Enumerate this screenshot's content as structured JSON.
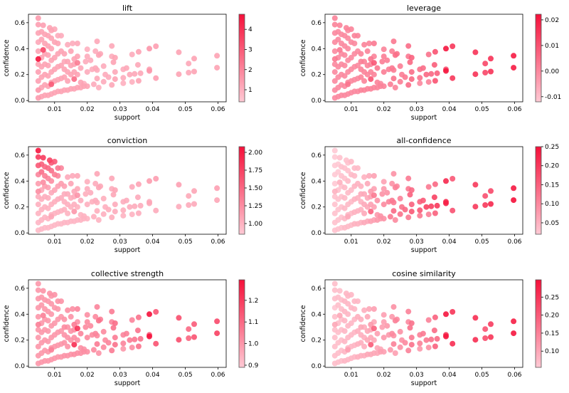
{
  "figure": {
    "colormap": {
      "low": "#ffc9d4",
      "high": "#f5103a"
    },
    "marker_opacity": 0.9
  },
  "points_fields": [
    "support",
    "confidence",
    "lift",
    "leverage",
    "conviction",
    "all-confidence",
    "collective strength",
    "cosine similarity"
  ],
  "points": [
    [
      0.0597,
      0.345,
      1.3,
      0.02,
      1.12,
      0.24,
      1.17,
      0.28
    ],
    [
      0.0597,
      0.253,
      1.3,
      0.02,
      1.08,
      0.25,
      1.19,
      0.29
    ],
    [
      0.0527,
      0.323,
      1.3,
      0.016,
      1.09,
      0.18,
      1.13,
      0.24
    ],
    [
      0.0527,
      0.223,
      1.3,
      0.016,
      1.06,
      0.22,
      1.15,
      0.25
    ],
    [
      0.051,
      0.285,
      1.2,
      0.012,
      1.07,
      0.17,
      1.1,
      0.21
    ],
    [
      0.051,
      0.215,
      1.2,
      0.012,
      1.05,
      0.2,
      1.11,
      0.22
    ],
    [
      0.048,
      0.372,
      1.3,
      0.016,
      1.12,
      0.2,
      1.16,
      0.26
    ],
    [
      0.048,
      0.203,
      1.3,
      0.016,
      1.05,
      0.2,
      1.16,
      0.26
    ],
    [
      0.041,
      0.418,
      1.4,
      0.015,
      1.14,
      0.16,
      1.14,
      0.25
    ],
    [
      0.041,
      0.173,
      1.4,
      0.015,
      1.05,
      0.17,
      1.15,
      0.26
    ],
    [
      0.039,
      0.4,
      1.6,
      0.021,
      1.15,
      0.22,
      1.29,
      0.29
    ],
    [
      0.039,
      0.24,
      1.3,
      0.01,
      1.06,
      0.22,
      1.14,
      0.25
    ],
    [
      0.039,
      0.228,
      1.6,
      0.021,
      1.08,
      0.23,
      1.29,
      0.29
    ],
    [
      0.0357,
      0.375,
      1.3,
      0.01,
      1.1,
      0.14,
      1.08,
      0.19
    ],
    [
      0.0355,
      0.275,
      1.2,
      0.008,
      1.06,
      0.19,
      1.08,
      0.18
    ],
    [
      0.0357,
      0.152,
      1.3,
      0.01,
      1.04,
      0.15,
      1.08,
      0.19
    ],
    [
      0.0337,
      0.355,
      1.1,
      0.004,
      1.06,
      0.12,
      1.04,
      0.15
    ],
    [
      0.0337,
      0.143,
      1.0,
      0.001,
      1.0,
      0.11,
      1.02,
      0.13
    ],
    [
      0.0363,
      0.21,
      1.2,
      0.007,
      1.05,
      0.2,
      1.08,
      0.18
    ],
    [
      0.0345,
      0.205,
      1.2,
      0.006,
      1.05,
      0.19,
      1.07,
      0.17
    ],
    [
      0.033,
      0.2,
      1.2,
      0.006,
      1.04,
      0.19,
      1.06,
      0.16
    ],
    [
      0.032,
      0.25,
      1.2,
      0.005,
      1.05,
      0.16,
      1.05,
      0.16
    ],
    [
      0.031,
      0.24,
      1.1,
      0.004,
      1.04,
      0.15,
      1.04,
      0.15
    ],
    [
      0.031,
      0.175,
      1.1,
      0.004,
      1.03,
      0.16,
      1.04,
      0.15
    ],
    [
      0.031,
      0.133,
      1.0,
      0.0,
      1.0,
      0.12,
      1.0,
      0.12
    ],
    [
      0.0285,
      0.33,
      1.3,
      0.007,
      1.09,
      0.14,
      1.09,
      0.17
    ],
    [
      0.0275,
      0.42,
      1.2,
      0.005,
      1.08,
      0.12,
      1.06,
      0.15
    ],
    [
      0.0275,
      0.34,
      1.1,
      0.003,
      1.05,
      0.12,
      1.04,
      0.14
    ],
    [
      0.028,
      0.295,
      1.3,
      0.006,
      1.08,
      0.15,
      1.08,
      0.17
    ],
    [
      0.0285,
      0.22,
      1.2,
      0.005,
      1.05,
      0.15,
      1.06,
      0.16
    ],
    [
      0.0285,
      0.165,
      1.3,
      0.006,
      1.04,
      0.16,
      1.08,
      0.17
    ],
    [
      0.0275,
      0.12,
      1.2,
      0.005,
      1.03,
      0.12,
      1.06,
      0.15
    ],
    [
      0.0265,
      0.18,
      1.1,
      0.003,
      1.03,
      0.14,
      1.04,
      0.14
    ],
    [
      0.0255,
      0.2,
      1.1,
      0.002,
      1.02,
      0.13,
      1.03,
      0.13
    ],
    [
      0.025,
      0.145,
      1.1,
      0.002,
      1.02,
      0.13,
      1.03,
      0.13
    ],
    [
      0.023,
      0.456,
      1.2,
      0.003,
      1.09,
      0.09,
      1.04,
      0.13
    ],
    [
      0.0225,
      0.38,
      1.1,
      0.002,
      1.05,
      0.09,
      1.03,
      0.12
    ],
    [
      0.0235,
      0.35,
      1.3,
      0.005,
      1.09,
      0.11,
      1.08,
      0.15
    ],
    [
      0.024,
      0.36,
      1.2,
      0.004,
      1.07,
      0.1,
      1.05,
      0.14
    ],
    [
      0.025,
      0.265,
      1.1,
      0.002,
      1.03,
      0.11,
      1.03,
      0.13
    ],
    [
      0.0225,
      0.25,
      1.2,
      0.003,
      1.04,
      0.12,
      1.04,
      0.14
    ],
    [
      0.023,
      0.235,
      1.1,
      0.002,
      1.03,
      0.12,
      1.03,
      0.13
    ],
    [
      0.0215,
      0.24,
      1.1,
      0.002,
      1.03,
      0.11,
      1.03,
      0.12
    ],
    [
      0.023,
      0.17,
      1.2,
      0.004,
      1.03,
      0.14,
      1.06,
      0.15
    ],
    [
      0.022,
      0.125,
      1.1,
      0.002,
      1.02,
      0.12,
      1.03,
      0.12
    ],
    [
      0.0235,
      0.1,
      1.0,
      0.001,
      1.0,
      0.1,
      1.01,
      0.11
    ],
    [
      0.02,
      0.395,
      1.0,
      0.001,
      1.03,
      0.07,
      1.02,
      0.11
    ],
    [
      0.02,
      0.34,
      1.1,
      0.002,
      1.04,
      0.08,
      1.03,
      0.11
    ],
    [
      0.02,
      0.22,
      1.1,
      0.002,
      1.02,
      0.1,
      1.03,
      0.12
    ],
    [
      0.021,
      0.31,
      1.1,
      0.002,
      1.04,
      0.09,
      1.03,
      0.12
    ],
    [
      0.0195,
      0.3,
      1.1,
      0.002,
      1.03,
      0.09,
      1.03,
      0.11
    ],
    [
      0.019,
      0.13,
      1.0,
      0.0,
      1.0,
      0.09,
      1.01,
      0.1
    ],
    [
      0.017,
      0.44,
      1.2,
      0.003,
      1.08,
      0.07,
      1.04,
      0.11
    ],
    [
      0.017,
      0.29,
      2.2,
      0.009,
      1.2,
      0.12,
      1.22,
      0.19
    ],
    [
      0.016,
      0.165,
      2.6,
      0.01,
      1.18,
      0.15,
      1.23,
      0.2
    ],
    [
      0.0155,
      0.44,
      1.1,
      0.001,
      1.06,
      0.06,
      1.02,
      0.1
    ],
    [
      0.016,
      0.32,
      1.3,
      0.004,
      1.08,
      0.08,
      1.06,
      0.12
    ],
    [
      0.018,
      0.25,
      1.2,
      0.003,
      1.04,
      0.09,
      1.04,
      0.11
    ],
    [
      0.014,
      0.43,
      1.1,
      0.001,
      1.06,
      0.05,
      1.02,
      0.09
    ],
    [
      0.013,
      0.3,
      1.2,
      0.002,
      1.04,
      0.06,
      1.03,
      0.1
    ],
    [
      0.012,
      0.5,
      1.1,
      0.001,
      1.3,
      0.04,
      1.01,
      0.08
    ],
    [
      0.011,
      0.5,
      1.1,
      0.001,
      1.4,
      0.04,
      1.01,
      0.08
    ],
    [
      0.01,
      0.55,
      1.2,
      0.001,
      1.6,
      0.04,
      1.01,
      0.08
    ],
    [
      0.0085,
      0.56,
      1.3,
      0.001,
      1.75,
      0.03,
      1.01,
      0.08
    ],
    [
      0.0065,
      0.58,
      1.4,
      0.001,
      1.8,
      0.03,
      1.01,
      0.07
    ],
    [
      0.005,
      0.635,
      1.5,
      0.001,
      2.05,
      0.02,
      1.0,
      0.07
    ],
    [
      0.005,
      0.585,
      1.4,
      0.001,
      1.8,
      0.02,
      1.0,
      0.07
    ],
    [
      0.005,
      0.52,
      1.3,
      0.0,
      1.6,
      0.02,
      1.0,
      0.07
    ],
    [
      0.005,
      0.45,
      1.2,
      0.0,
      1.3,
      0.02,
      1.0,
      0.06
    ],
    [
      0.005,
      0.32,
      4.7,
      0.003,
      1.25,
      0.05,
      1.05,
      0.1
    ],
    [
      0.0065,
      0.39,
      3.5,
      0.003,
      1.25,
      0.05,
      1.05,
      0.1
    ],
    [
      0.009,
      0.125,
      3.0,
      0.004,
      1.08,
      0.06,
      1.05,
      0.11
    ],
    [
      0.005,
      0.02,
      1.5,
      0.0,
      0.95,
      0.03,
      1.0,
      0.07
    ],
    [
      0.005,
      0.08,
      1.6,
      0.0,
      0.98,
      0.03,
      1.0,
      0.07
    ],
    [
      0.005,
      0.15,
      1.4,
      0.0,
      1.0,
      0.03,
      1.0,
      0.07
    ],
    [
      0.005,
      0.22,
      1.4,
      0.0,
      1.02,
      0.03,
      1.0,
      0.07
    ],
    [
      0.005,
      0.28,
      1.3,
      0.0,
      1.04,
      0.03,
      1.0,
      0.07
    ],
    [
      0.005,
      0.38,
      1.3,
      0.0,
      1.15,
      0.02,
      1.0,
      0.07
    ],
    [
      0.006,
      0.03,
      1.3,
      0.0,
      0.96,
      0.03,
      1.0,
      0.07
    ],
    [
      0.006,
      0.1,
      1.3,
      0.0,
      0.99,
      0.03,
      1.0,
      0.07
    ],
    [
      0.006,
      0.18,
      1.3,
      0.0,
      1.01,
      0.03,
      1.0,
      0.07
    ],
    [
      0.006,
      0.26,
      1.3,
      0.0,
      1.03,
      0.03,
      1.0,
      0.07
    ],
    [
      0.006,
      0.33,
      1.3,
      0.0,
      1.08,
      0.03,
      1.0,
      0.07
    ],
    [
      0.006,
      0.47,
      1.3,
      0.0,
      1.45,
      0.02,
      1.0,
      0.07
    ],
    [
      0.006,
      0.53,
      1.3,
      0.0,
      1.55,
      0.02,
      1.0,
      0.07
    ],
    [
      0.007,
      0.04,
      1.3,
      0.0,
      0.96,
      0.03,
      1.0,
      0.07
    ],
    [
      0.007,
      0.12,
      1.3,
      0.0,
      0.99,
      0.03,
      1.0,
      0.07
    ],
    [
      0.007,
      0.2,
      1.3,
      0.0,
      1.01,
      0.03,
      1.0,
      0.07
    ],
    [
      0.007,
      0.28,
      1.3,
      0.0,
      1.04,
      0.03,
      1.0,
      0.07
    ],
    [
      0.007,
      0.36,
      1.3,
      0.0,
      1.15,
      0.03,
      1.0,
      0.07
    ],
    [
      0.007,
      0.44,
      1.3,
      0.0,
      1.35,
      0.03,
      1.0,
      0.07
    ],
    [
      0.007,
      0.51,
      1.3,
      0.0,
      1.5,
      0.03,
      1.0,
      0.07
    ],
    [
      0.008,
      0.04,
      1.3,
      0.0,
      0.96,
      0.04,
      1.0,
      0.08
    ],
    [
      0.008,
      0.11,
      1.3,
      0.0,
      0.99,
      0.04,
      1.0,
      0.08
    ],
    [
      0.008,
      0.19,
      1.3,
      0.0,
      1.01,
      0.04,
      1.0,
      0.08
    ],
    [
      0.008,
      0.27,
      1.3,
      0.0,
      1.04,
      0.04,
      1.0,
      0.08
    ],
    [
      0.008,
      0.35,
      1.3,
      0.0,
      1.12,
      0.04,
      1.0,
      0.08
    ],
    [
      0.008,
      0.42,
      1.3,
      0.0,
      1.3,
      0.03,
      1.0,
      0.08
    ],
    [
      0.008,
      0.5,
      1.3,
      0.0,
      1.5,
      0.03,
      1.0,
      0.08
    ],
    [
      0.009,
      0.05,
      1.3,
      0.0,
      0.96,
      0.04,
      1.0,
      0.08
    ],
    [
      0.009,
      0.14,
      1.3,
      0.0,
      1.0,
      0.04,
      1.0,
      0.08
    ],
    [
      0.009,
      0.22,
      1.3,
      0.0,
      1.02,
      0.04,
      1.0,
      0.08
    ],
    [
      0.009,
      0.31,
      1.3,
      0.0,
      1.06,
      0.04,
      1.0,
      0.08
    ],
    [
      0.009,
      0.4,
      1.3,
      0.0,
      1.25,
      0.04,
      1.0,
      0.08
    ],
    [
      0.009,
      0.48,
      1.3,
      0.0,
      1.45,
      0.03,
      1.0,
      0.08
    ],
    [
      0.009,
      0.54,
      1.3,
      0.0,
      1.6,
      0.03,
      1.0,
      0.08
    ],
    [
      0.01,
      0.06,
      1.3,
      0.0,
      0.97,
      0.04,
      1.0,
      0.08
    ],
    [
      0.01,
      0.15,
      1.3,
      0.0,
      1.0,
      0.04,
      1.0,
      0.08
    ],
    [
      0.01,
      0.24,
      1.3,
      0.0,
      1.03,
      0.04,
      1.0,
      0.08
    ],
    [
      0.01,
      0.33,
      1.3,
      0.0,
      1.09,
      0.04,
      1.0,
      0.08
    ],
    [
      0.01,
      0.45,
      1.3,
      0.0,
      1.35,
      0.04,
      1.0,
      0.08
    ],
    [
      0.011,
      0.07,
      1.3,
      0.0,
      0.97,
      0.05,
      1.0,
      0.08
    ],
    [
      0.011,
      0.16,
      1.3,
      0.0,
      1.0,
      0.05,
      1.0,
      0.08
    ],
    [
      0.011,
      0.26,
      1.3,
      0.0,
      1.04,
      0.05,
      1.0,
      0.08
    ],
    [
      0.011,
      0.36,
      1.3,
      0.0,
      1.12,
      0.05,
      1.0,
      0.08
    ],
    [
      0.011,
      0.44,
      1.3,
      0.0,
      1.3,
      0.04,
      1.0,
      0.08
    ],
    [
      0.012,
      0.07,
      1.3,
      0.0,
      0.97,
      0.05,
      1.0,
      0.09
    ],
    [
      0.012,
      0.17,
      1.3,
      0.0,
      1.0,
      0.05,
      1.0,
      0.09
    ],
    [
      0.012,
      0.27,
      1.3,
      0.0,
      1.04,
      0.05,
      1.0,
      0.09
    ],
    [
      0.012,
      0.38,
      1.3,
      0.0,
      1.15,
      0.05,
      1.0,
      0.09
    ],
    [
      0.013,
      0.08,
      1.3,
      0.001,
      0.98,
      0.05,
      1.01,
      0.09
    ],
    [
      0.013,
      0.18,
      1.3,
      0.001,
      1.01,
      0.05,
      1.01,
      0.09
    ],
    [
      0.013,
      0.24,
      1.3,
      0.001,
      1.02,
      0.05,
      1.01,
      0.09
    ],
    [
      0.013,
      0.36,
      1.3,
      0.001,
      1.12,
      0.05,
      1.01,
      0.09
    ],
    [
      0.014,
      0.08,
      1.3,
      0.001,
      0.98,
      0.06,
      1.01,
      0.09
    ],
    [
      0.014,
      0.15,
      1.3,
      0.001,
      1.0,
      0.06,
      1.01,
      0.09
    ],
    [
      0.014,
      0.22,
      1.3,
      0.001,
      1.02,
      0.06,
      1.01,
      0.09
    ],
    [
      0.014,
      0.3,
      1.3,
      0.001,
      1.05,
      0.06,
      1.01,
      0.09
    ],
    [
      0.015,
      0.09,
      1.3,
      0.001,
      0.98,
      0.06,
      1.01,
      0.1
    ],
    [
      0.015,
      0.2,
      1.3,
      0.001,
      1.01,
      0.06,
      1.01,
      0.1
    ],
    [
      0.015,
      0.27,
      1.3,
      0.001,
      1.03,
      0.06,
      1.01,
      0.1
    ],
    [
      0.015,
      0.38,
      1.3,
      0.001,
      1.1,
      0.06,
      1.01,
      0.1
    ],
    [
      0.016,
      0.09,
      1.3,
      0.001,
      0.98,
      0.07,
      1.02,
      0.1
    ],
    [
      0.016,
      0.22,
      1.3,
      0.001,
      1.02,
      0.07,
      1.02,
      0.1
    ],
    [
      0.016,
      0.28,
      1.3,
      0.001,
      1.04,
      0.07,
      1.02,
      0.1
    ],
    [
      0.017,
      0.1,
      1.3,
      0.001,
      0.98,
      0.07,
      1.02,
      0.1
    ],
    [
      0.017,
      0.2,
      1.3,
      0.001,
      1.01,
      0.07,
      1.02,
      0.1
    ],
    [
      0.017,
      0.34,
      1.3,
      0.001,
      1.07,
      0.07,
      1.02,
      0.1
    ],
    [
      0.018,
      0.1,
      1.3,
      0.001,
      0.99,
      0.08,
      1.02,
      0.1
    ],
    [
      0.018,
      0.14,
      1.3,
      0.001,
      1.0,
      0.08,
      1.02,
      0.1
    ],
    [
      0.019,
      0.11,
      1.3,
      0.001,
      0.99,
      0.08,
      1.02,
      0.11
    ],
    [
      0.02,
      0.11,
      1.3,
      0.001,
      0.99,
      0.09,
      1.02,
      0.11
    ]
  ],
  "chart_data": [
    {
      "type": "scatter",
      "title": "lift",
      "xlabel": "support",
      "ylabel": "confidence",
      "metric_index": 2,
      "xlim": [
        0.002,
        0.0625
      ],
      "ylim": [
        -0.01,
        0.665
      ],
      "xticks": [
        "0.01",
        "0.02",
        "0.03",
        "0.04",
        "0.05",
        "0.06"
      ],
      "yticks": [
        "0.0",
        "0.2",
        "0.4",
        "0.6"
      ],
      "colorbar": {
        "range": [
          0.4,
          4.75
        ],
        "ticks": [
          "1",
          "2",
          "3",
          "4"
        ]
      }
    },
    {
      "type": "scatter",
      "title": "leverage",
      "xlabel": "support",
      "ylabel": "confidence",
      "metric_index": 3,
      "xlim": [
        0.002,
        0.0625
      ],
      "ylim": [
        -0.01,
        0.665
      ],
      "xticks": [
        "0.01",
        "0.02",
        "0.03",
        "0.04",
        "0.05",
        "0.06"
      ],
      "yticks": [
        "0.0",
        "0.2",
        "0.4",
        "0.6"
      ],
      "colorbar": {
        "range": [
          -0.012,
          0.0222
        ],
        "ticks": [
          "-0.01",
          "0.00",
          "0.01",
          "0.02"
        ]
      }
    },
    {
      "type": "scatter",
      "title": "conviction",
      "xlabel": "support",
      "ylabel": "confidence",
      "metric_index": 4,
      "xlim": [
        0.002,
        0.0625
      ],
      "ylim": [
        -0.01,
        0.665
      ],
      "xticks": [
        "0.01",
        "0.02",
        "0.03",
        "0.04",
        "0.05",
        "0.06"
      ],
      "yticks": [
        "0.0",
        "0.2",
        "0.4",
        "0.6"
      ],
      "colorbar": {
        "range": [
          0.85,
          2.08
        ],
        "ticks": [
          "1.00",
          "1.25",
          "1.50",
          "1.75",
          "2.00"
        ]
      }
    },
    {
      "type": "scatter",
      "title": "all-confidence",
      "xlabel": "support",
      "ylabel": "confidence",
      "metric_index": 5,
      "xlim": [
        0.002,
        0.0625
      ],
      "ylim": [
        -0.01,
        0.665
      ],
      "xticks": [
        "0.01",
        "0.02",
        "0.03",
        "0.04",
        "0.05",
        "0.06"
      ],
      "yticks": [
        "0.0",
        "0.2",
        "0.4",
        "0.6"
      ],
      "colorbar": {
        "range": [
          0.02,
          0.25
        ],
        "ticks": [
          "0.05",
          "0.10",
          "0.15",
          "0.20",
          "0.25"
        ]
      }
    },
    {
      "type": "scatter",
      "title": "collective strength",
      "xlabel": "support",
      "ylabel": "confidence",
      "metric_index": 6,
      "xlim": [
        0.002,
        0.0625
      ],
      "ylim": [
        -0.01,
        0.665
      ],
      "xticks": [
        "0.01",
        "0.02",
        "0.03",
        "0.04",
        "0.05",
        "0.06"
      ],
      "yticks": [
        "0.0",
        "0.2",
        "0.4",
        "0.6"
      ],
      "colorbar": {
        "range": [
          0.89,
          1.295
        ],
        "ticks": [
          "0.9",
          "1.0",
          "1.1",
          "1.2"
        ]
      }
    },
    {
      "type": "scatter",
      "title": "cosine similarity",
      "xlabel": "support",
      "ylabel": "confidence",
      "metric_index": 7,
      "xlim": [
        0.002,
        0.0625
      ],
      "ylim": [
        -0.01,
        0.665
      ],
      "xticks": [
        "0.01",
        "0.02",
        "0.03",
        "0.04",
        "0.05",
        "0.06"
      ],
      "yticks": [
        "0.0",
        "0.2",
        "0.4",
        "0.6"
      ],
      "colorbar": {
        "range": [
          0.055,
          0.298
        ],
        "ticks": [
          "0.10",
          "0.15",
          "0.20",
          "0.25"
        ]
      }
    }
  ]
}
